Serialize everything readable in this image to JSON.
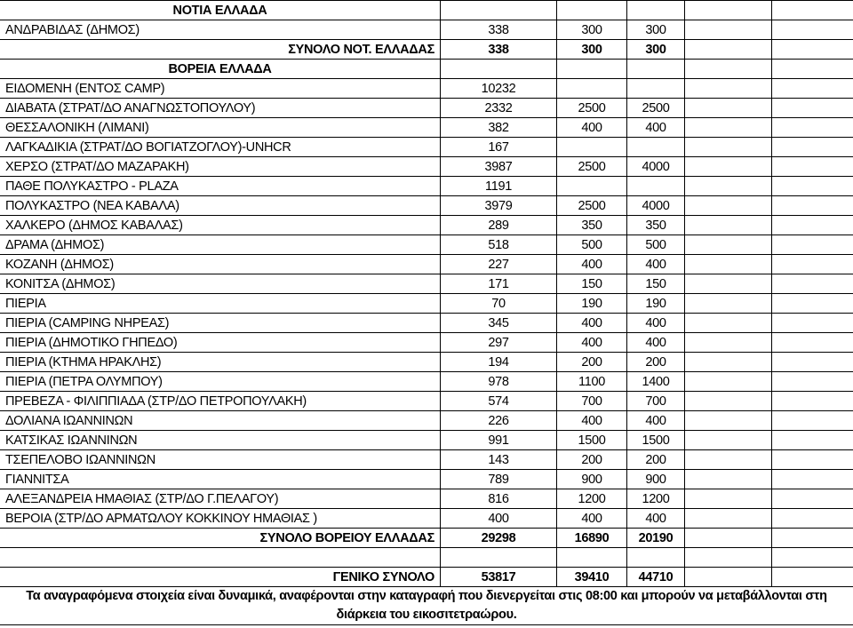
{
  "rows": [
    {
      "type": "section",
      "label": "ΝΟΤΙΑ ΕΛΛΑΔΑ",
      "v": [
        "",
        "",
        ""
      ]
    },
    {
      "type": "item",
      "label": "ΑΝΔΡΑΒΙΔΑΣ (ΔΗΜΟΣ)",
      "v": [
        "338",
        "300",
        "300"
      ]
    },
    {
      "type": "total",
      "label": "ΣΥΝΟΛΟ ΝΟΤ. ΕΛΛΑΔΑΣ",
      "v": [
        "338",
        "300",
        "300"
      ]
    },
    {
      "type": "section",
      "label": "ΒΟΡΕΙΑ ΕΛΛΑΔΑ",
      "v": [
        "",
        "",
        ""
      ]
    },
    {
      "type": "item",
      "label": "ΕΙΔΟΜΕΝΗ (ΕΝΤΟΣ CAMP)",
      "v": [
        "10232",
        "",
        ""
      ]
    },
    {
      "type": "item",
      "label": "ΔΙΑΒΑΤΑ (ΣΤΡΑΤ/ΔΟ ΑΝΑΓΝΩΣΤΟΠΟΥΛΟΥ)",
      "v": [
        "2332",
        "2500",
        "2500"
      ]
    },
    {
      "type": "item",
      "label": "ΘΕΣΣΑΛΟΝΙΚΗ (ΛΙΜΑΝΙ)",
      "v": [
        "382",
        "400",
        "400"
      ]
    },
    {
      "type": "item",
      "label": "ΛΑΓΚΑΔΙΚΙΑ (ΣΤΡΑΤ/ΔΟ ΒΟΓΙΑΤΖΟΓΛΟΥ)-UNHCR",
      "v": [
        "167",
        "",
        ""
      ]
    },
    {
      "type": "item",
      "label": "ΧΕΡΣΟ (ΣΤΡΑΤ/ΔΟ ΜΑΖΑΡΑΚΗ)",
      "v": [
        "3987",
        "2500",
        "4000"
      ]
    },
    {
      "type": "item",
      "label": "ΠΑΘΕ ΠΟΛΥΚΑΣΤΡΟ - PLAZA",
      "v": [
        "1191",
        "",
        ""
      ]
    },
    {
      "type": "item",
      "label": "ΠΟΛΥΚΑΣΤΡΟ (ΝΕΑ ΚΑΒΑΛΑ)",
      "v": [
        "3979",
        "2500",
        "4000"
      ]
    },
    {
      "type": "item",
      "label": "ΧΑΛΚΕΡΟ (ΔΗΜΟΣ ΚΑΒΑΛΑΣ)",
      "v": [
        "289",
        "350",
        "350"
      ]
    },
    {
      "type": "item",
      "label": "ΔΡΑΜΑ (ΔΗΜΟΣ)",
      "v": [
        "518",
        "500",
        "500"
      ]
    },
    {
      "type": "item",
      "label": "ΚΟΖΑΝΗ (ΔΗΜΟΣ)",
      "v": [
        "227",
        "400",
        "400"
      ]
    },
    {
      "type": "item",
      "label": "ΚΟΝΙΤΣΑ (ΔΗΜΟΣ)",
      "v": [
        "171",
        "150",
        "150"
      ]
    },
    {
      "type": "item",
      "label": "ΠΙΕΡΙΑ",
      "v": [
        "70",
        "190",
        "190"
      ]
    },
    {
      "type": "item",
      "label": "ΠΙΕΡΙΑ (CAMPING ΝΗΡΕΑΣ)",
      "v": [
        "345",
        "400",
        "400"
      ]
    },
    {
      "type": "item",
      "label": "ΠΙΕΡΙΑ (ΔΗΜΟΤΙΚΟ ΓΗΠΕΔΟ)",
      "v": [
        "297",
        "400",
        "400"
      ]
    },
    {
      "type": "item",
      "label": "ΠΙΕΡΙΑ (ΚΤΗΜΑ ΗΡΑΚΛΗΣ)",
      "v": [
        "194",
        "200",
        "200"
      ]
    },
    {
      "type": "item",
      "label": "ΠΙΕΡΙΑ (ΠΕΤΡΑ ΟΛΥΜΠΟΥ)",
      "v": [
        "978",
        "1100",
        "1400"
      ]
    },
    {
      "type": "item",
      "label": "ΠΡΕΒΕΖΑ - ΦΙΛΙΠΠΙΑΔΑ (ΣΤΡ/ΔΟ ΠΕΤΡΟΠΟΥΛΑΚΗ)",
      "v": [
        "574",
        "700",
        "700"
      ]
    },
    {
      "type": "item",
      "label": "ΔΟΛΙΑΝΑ ΙΩΑΝΝΙΝΩΝ",
      "v": [
        "226",
        "400",
        "400"
      ]
    },
    {
      "type": "item",
      "label": "ΚΑΤΣΙΚΑΣ ΙΩΑΝΝΙΝΩΝ",
      "v": [
        "991",
        "1500",
        "1500"
      ]
    },
    {
      "type": "item",
      "label": "ΤΣΕΠΕΛΟΒΟ ΙΩΑΝΝΙΝΩΝ",
      "v": [
        "143",
        "200",
        "200"
      ]
    },
    {
      "type": "item",
      "label": "ΓΙΑΝΝΙΤΣΑ",
      "v": [
        "789",
        "900",
        "900"
      ]
    },
    {
      "type": "item",
      "label": "ΑΛΕΞΑΝΔΡΕΙΑ ΗΜΑΘΙΑΣ (ΣΤΡ/ΔΟ Γ.ΠΕΛΑΓΟΥ)",
      "v": [
        "816",
        "1200",
        "1200"
      ]
    },
    {
      "type": "item",
      "label": "ΒΕΡΟΙΑ (ΣΤΡ/ΔΟ ΑΡΜΑΤΩΛΟΥ ΚΟΚΚΙΝΟΥ ΗΜΑΘΙΑΣ )",
      "v": [
        "400",
        "400",
        "400"
      ]
    },
    {
      "type": "total",
      "label": "ΣΥΝΟΛΟ ΒΟΡΕΙΟΥ ΕΛΛΑΔΑΣ",
      "v": [
        "29298",
        "16890",
        "20190"
      ]
    },
    {
      "type": "empty",
      "label": "",
      "v": [
        "",
        "",
        ""
      ]
    },
    {
      "type": "total",
      "label": "ΓΕΝΙΚΟ ΣΥΝΟΛΟ",
      "v": [
        "53817",
        "39410",
        "44710"
      ]
    }
  ],
  "footer_note": "Τα αναγραφόμενα στοιχεία είναι δυναμικά, αναφέρονται στην καταγραφή που διενεργείται στις 08:00 και  μπορούν να μεταβάλλονται στη διάρκεια του εικοσιτετραώρου."
}
